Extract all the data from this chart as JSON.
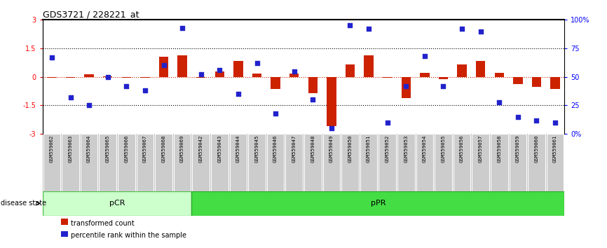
{
  "title": "GDS3721 / 228221_at",
  "samples": [
    "GSM559062",
    "GSM559063",
    "GSM559064",
    "GSM559065",
    "GSM559066",
    "GSM559067",
    "GSM559068",
    "GSM559069",
    "GSM559042",
    "GSM559043",
    "GSM559044",
    "GSM559045",
    "GSM559046",
    "GSM559047",
    "GSM559048",
    "GSM559049",
    "GSM559050",
    "GSM559051",
    "GSM559052",
    "GSM559053",
    "GSM559054",
    "GSM559055",
    "GSM559056",
    "GSM559057",
    "GSM559058",
    "GSM559059",
    "GSM559060",
    "GSM559061"
  ],
  "bar_values": [
    -0.03,
    -0.03,
    0.12,
    0.03,
    -0.04,
    -0.04,
    1.05,
    1.15,
    -0.03,
    0.28,
    0.85,
    0.18,
    -0.65,
    0.18,
    -0.85,
    -2.6,
    0.65,
    1.15,
    -0.04,
    -1.1,
    0.22,
    -0.12,
    0.65,
    0.85,
    0.22,
    -0.38,
    -0.52,
    -0.62
  ],
  "percentile_values": [
    67,
    32,
    25,
    50,
    42,
    38,
    60,
    93,
    52,
    56,
    35,
    62,
    18,
    55,
    30,
    5,
    95,
    92,
    10,
    42,
    68,
    42,
    92,
    90,
    28,
    15,
    12,
    10
  ],
  "pCR_count": 8,
  "pPR_count": 20,
  "ylim_left": [
    -3,
    3
  ],
  "ylim_right": [
    0,
    100
  ],
  "yticks_left": [
    -3,
    -1.5,
    0,
    1.5,
    3
  ],
  "yticks_right": [
    0,
    25,
    50,
    75,
    100
  ],
  "ytick_labels_right": [
    "0%",
    "25",
    "50",
    "75",
    "100%"
  ],
  "dotted_lines": [
    -1.5,
    1.5
  ],
  "bar_color": "#cc2200",
  "point_color": "#2222cc",
  "pCR_color": "#ccffcc",
  "pPR_color": "#44dd44",
  "bg_color": "#ffffff",
  "xticklabel_bg": "#cccccc",
  "legend_red": "transformed count",
  "legend_blue": "percentile rank within the sample",
  "disease_state_label": "disease state",
  "pCR_label": "pCR",
  "pPR_label": "pPR"
}
